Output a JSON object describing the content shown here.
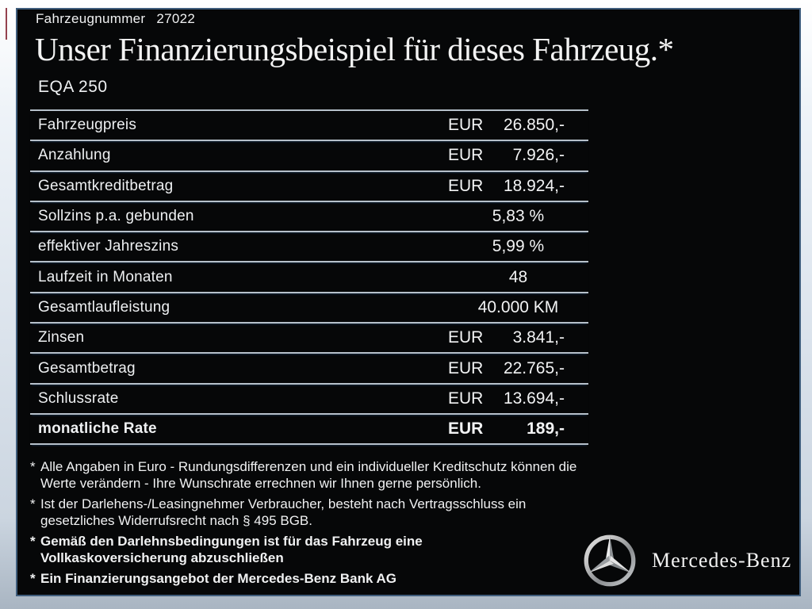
{
  "header": {
    "vehicle_label": "Fahrzeugnummer",
    "vehicle_number": "27022",
    "title": "Unser Finanzierungsbeispiel für dieses Fahrzeug.*",
    "model": "EQA 250"
  },
  "table": {
    "rows": [
      {
        "label": "Fahrzeugpreis",
        "currency": "EUR",
        "value": "26.850,-",
        "bold": false
      },
      {
        "label": "Anzahlung",
        "currency": "EUR",
        "value": "7.926,-",
        "bold": false
      },
      {
        "label": "Gesamtkreditbetrag",
        "currency": "EUR",
        "value": "18.924,-",
        "bold": false
      },
      {
        "label": "Sollzins p.a. gebunden",
        "currency": "",
        "value": "5,83 %",
        "bold": false
      },
      {
        "label": "effektiver Jahreszins",
        "currency": "",
        "value": "5,99 %",
        "bold": false
      },
      {
        "label": "Laufzeit in Monaten",
        "currency": "",
        "value": "48",
        "bold": false
      },
      {
        "label": "Gesamtlaufleistung",
        "currency": "",
        "value": "40.000 KM",
        "bold": false
      },
      {
        "label": "Zinsen",
        "currency": "EUR",
        "value": "3.841,-",
        "bold": false
      },
      {
        "label": "Gesamtbetrag",
        "currency": "EUR",
        "value": "22.765,-",
        "bold": false
      },
      {
        "label": "Schlussrate",
        "currency": "EUR",
        "value": "13.694,-",
        "bold": false
      },
      {
        "label": "monatliche Rate",
        "currency": "EUR",
        "value": "189,-",
        "bold": true
      }
    ]
  },
  "footnotes": [
    {
      "marker": "*",
      "bold": false,
      "lines": [
        "Alle Angaben in Euro - Rundungsdifferenzen und ein individueller Kreditschutz können die",
        "Werte verändern - Ihre Wunschrate errechnen wir Ihnen gerne persönlich."
      ]
    },
    {
      "marker": "*",
      "bold": false,
      "lines": [
        "Ist der Darlehens-/Leasingnehmer Verbraucher, besteht nach Vertragsschluss ein",
        "gesetzliches Widerrufsrecht nach § 495 BGB."
      ]
    },
    {
      "marker": "*",
      "bold": true,
      "lines": [
        "Gemäß den Darlehnsbedingungen ist für das Fahrzeug eine",
        "Vollkaskoversicherung abzuschließen"
      ]
    },
    {
      "marker": "*",
      "bold": true,
      "lines": [
        "Ein Finanzierungsangebot der Mercedes-Benz Bank AG"
      ]
    }
  ],
  "brand": {
    "logo_icon": "mercedes-star-icon",
    "wordmark": "Mercedes-Benz"
  },
  "colors": {
    "panel_background": "#060708",
    "panel_border": "#3f5d7c",
    "text": "#f0f1f2",
    "separator": "#b6c0ca",
    "accent_red_sliver": "#94424f"
  }
}
